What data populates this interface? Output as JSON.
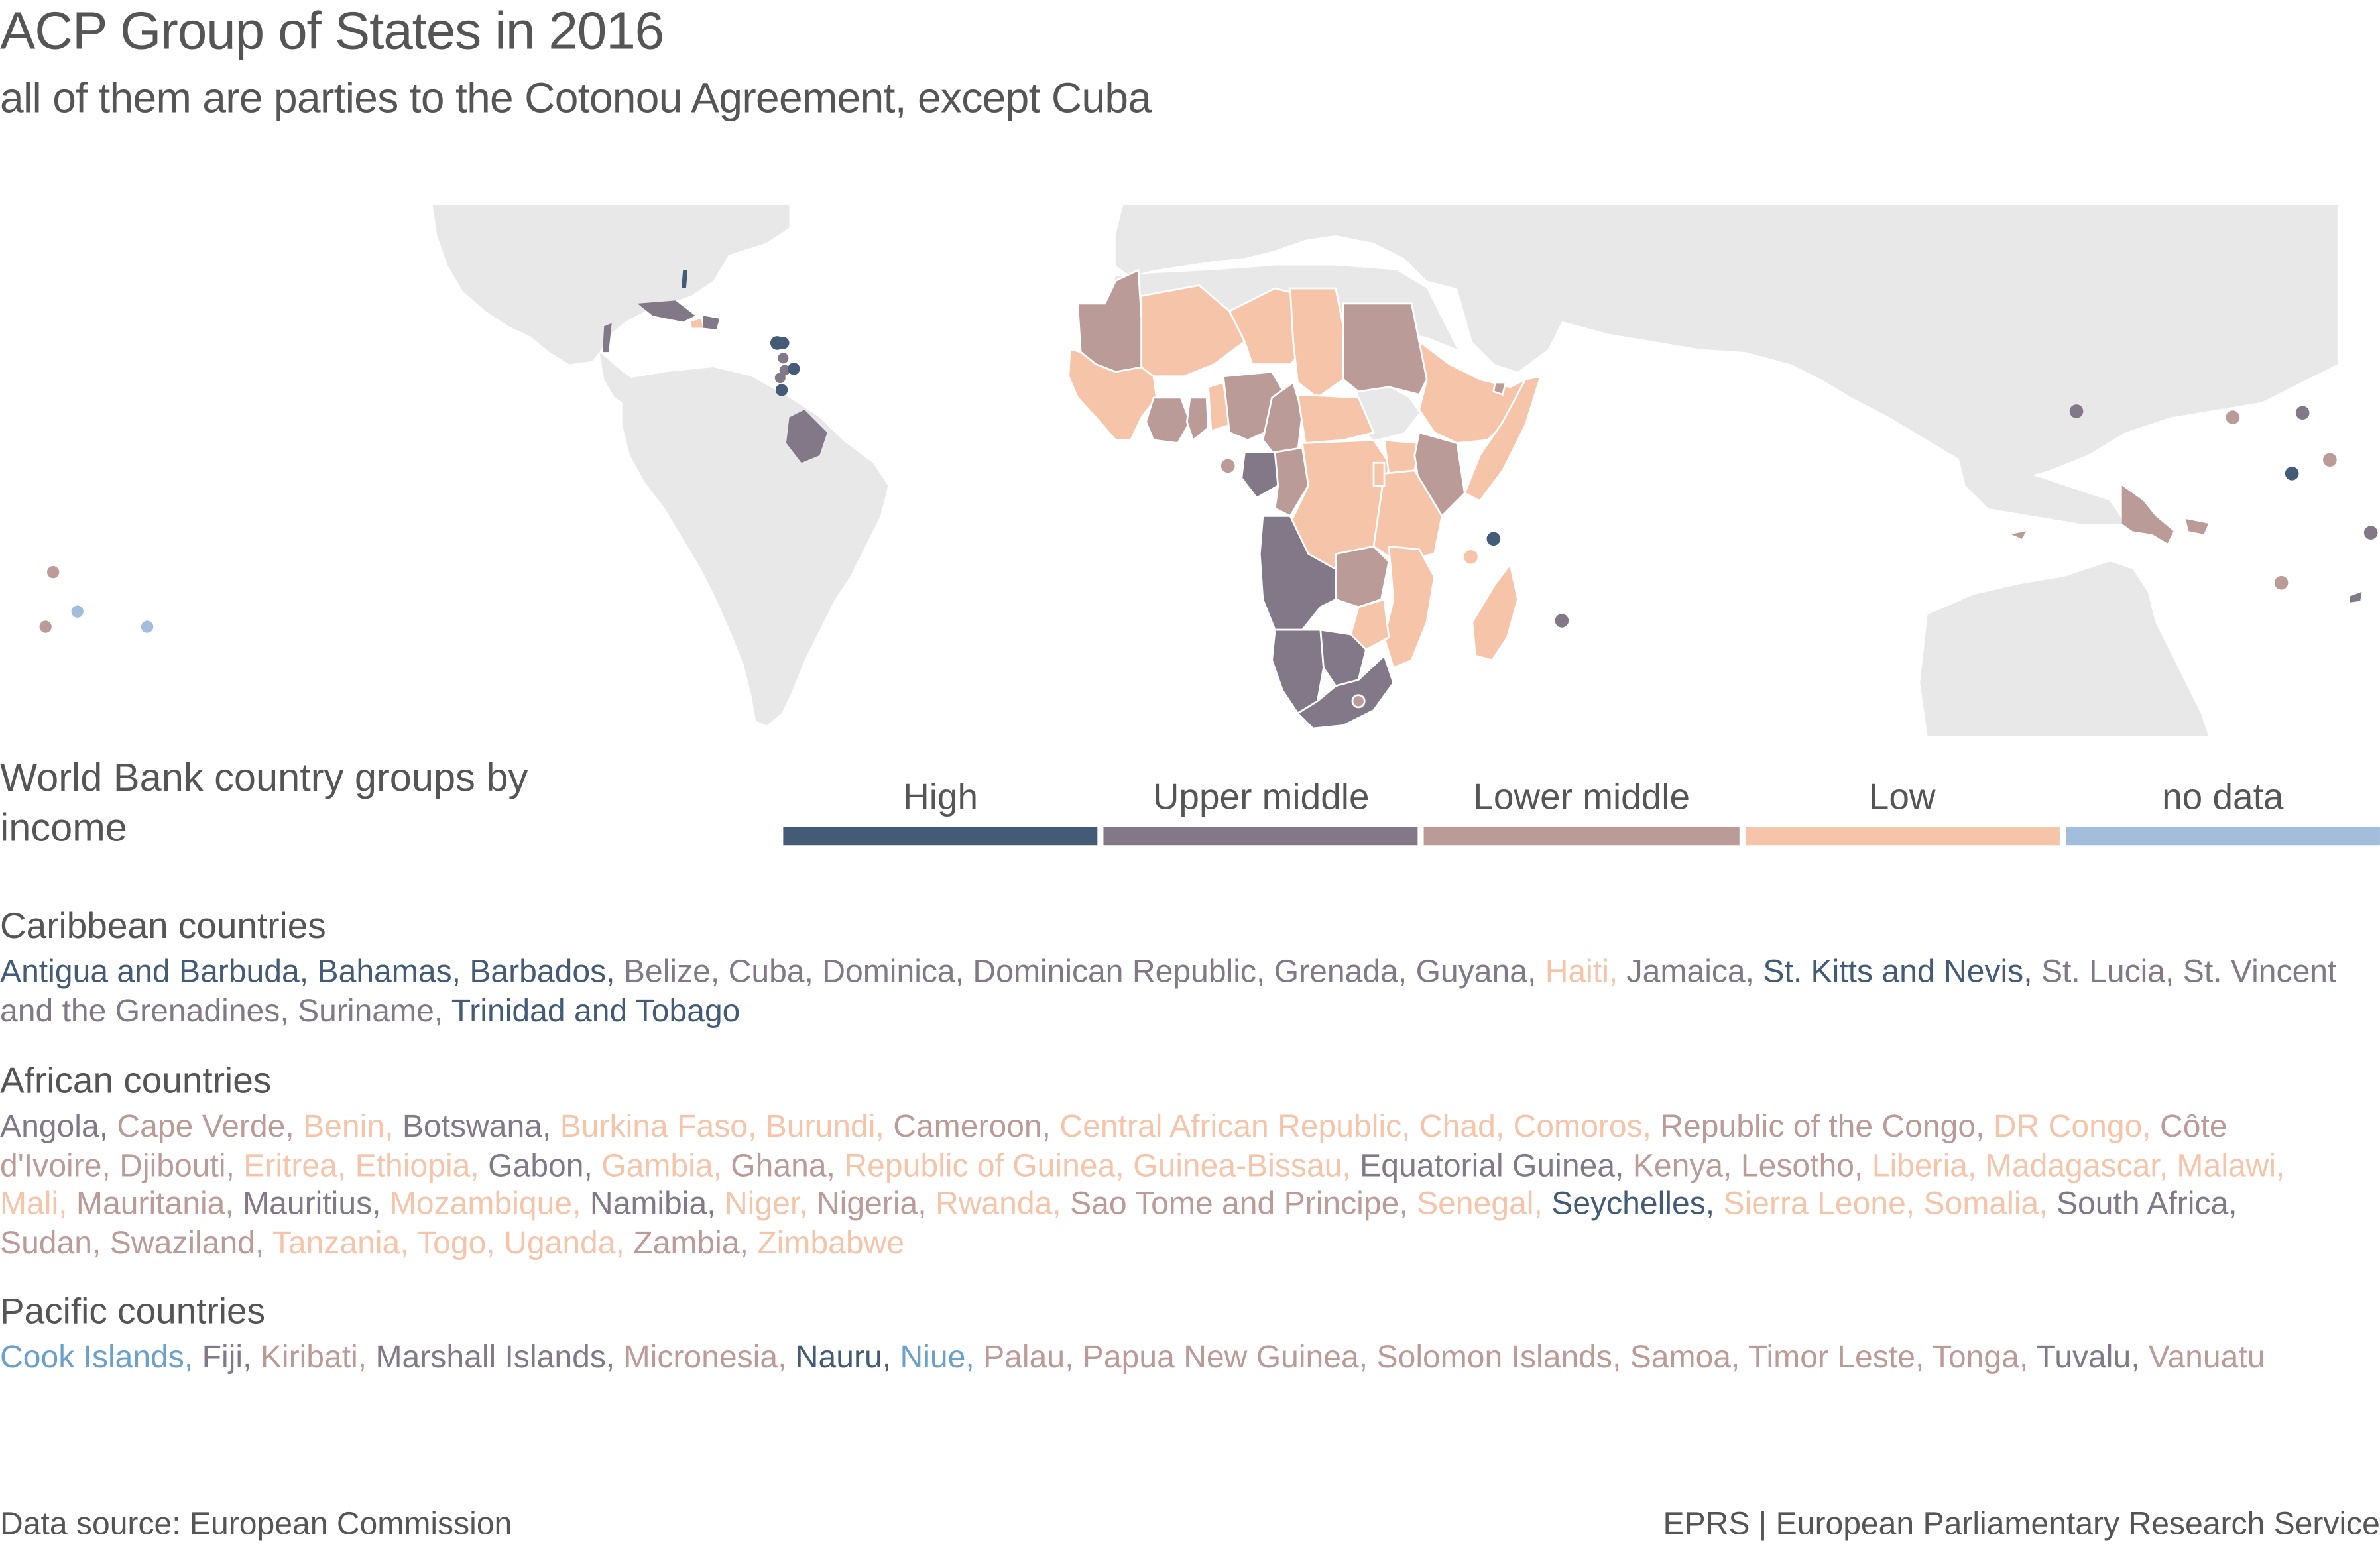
{
  "header": {
    "title": "ACP Group of States in 2016",
    "subtitle": "all of them are parties to the Cotonou Agreement, except Cuba"
  },
  "legend": {
    "title": "World Bank country groups by income",
    "items": [
      {
        "key": "high",
        "label": "High",
        "color": "#435b77"
      },
      {
        "key": "upper",
        "label": "Upper middle",
        "color": "#827888"
      },
      {
        "key": "lower",
        "label": "Lower middle",
        "color": "#bb9b97"
      },
      {
        "key": "low",
        "label": "Low",
        "color": "#f6c4a8"
      },
      {
        "key": "nodata",
        "label": "no data",
        "color": "#a3bedc"
      }
    ]
  },
  "map": {
    "land_color": "#e8e8e8",
    "border_color": "#ffffff"
  },
  "sections": [
    {
      "title": "Caribbean countries",
      "countries": [
        {
          "name": "Antigua and Barbuda",
          "group": "high"
        },
        {
          "name": "Bahamas",
          "group": "high"
        },
        {
          "name": "Barbados",
          "group": "high"
        },
        {
          "name": "Belize",
          "group": "upper"
        },
        {
          "name": "Cuba",
          "group": "upper"
        },
        {
          "name": "Dominica",
          "group": "upper"
        },
        {
          "name": "Dominican Republic",
          "group": "upper"
        },
        {
          "name": "Grenada",
          "group": "upper"
        },
        {
          "name": "Guyana",
          "group": "upper"
        },
        {
          "name": "Haiti",
          "group": "low"
        },
        {
          "name": "Jamaica",
          "group": "upper"
        },
        {
          "name": "St. Kitts and Nevis",
          "group": "high"
        },
        {
          "name": "St. Lucia",
          "group": "upper"
        },
        {
          "name": "St. Vincent and the Grenadines",
          "group": "upper"
        },
        {
          "name": "Suriname",
          "group": "upper"
        },
        {
          "name": "Trinidad and Tobago",
          "group": "high"
        }
      ]
    },
    {
      "title": "African countries",
      "countries": [
        {
          "name": "Angola",
          "group": "upper"
        },
        {
          "name": "Cape Verde",
          "group": "lower"
        },
        {
          "name": "Benin",
          "group": "low"
        },
        {
          "name": "Botswana",
          "group": "upper"
        },
        {
          "name": "Burkina Faso",
          "group": "low"
        },
        {
          "name": "Burundi",
          "group": "low"
        },
        {
          "name": "Cameroon",
          "group": "lower"
        },
        {
          "name": "Central African Republic",
          "group": "low"
        },
        {
          "name": "Chad",
          "group": "low"
        },
        {
          "name": "Comoros",
          "group": "low"
        },
        {
          "name": "Republic of the Congo",
          "group": "lower"
        },
        {
          "name": "DR Congo",
          "group": "low"
        },
        {
          "name": "Côte d'Ivoire",
          "group": "lower"
        },
        {
          "name": "Djibouti",
          "group": "lower"
        },
        {
          "name": "Eritrea",
          "group": "low"
        },
        {
          "name": "Ethiopia",
          "group": "low"
        },
        {
          "name": "Gabon",
          "group": "upper"
        },
        {
          "name": "Gambia",
          "group": "low"
        },
        {
          "name": "Ghana",
          "group": "lower"
        },
        {
          "name": "Republic of Guinea",
          "group": "low"
        },
        {
          "name": "Guinea-Bissau",
          "group": "low"
        },
        {
          "name": "Equatorial Guinea",
          "group": "upper"
        },
        {
          "name": "Kenya",
          "group": "lower"
        },
        {
          "name": "Lesotho",
          "group": "lower"
        },
        {
          "name": "Liberia",
          "group": "low"
        },
        {
          "name": "Madagascar",
          "group": "low"
        },
        {
          "name": "Malawi",
          "group": "low"
        },
        {
          "name": "Mali",
          "group": "low"
        },
        {
          "name": "Mauritania",
          "group": "lower"
        },
        {
          "name": "Mauritius",
          "group": "upper"
        },
        {
          "name": "Mozambique",
          "group": "low"
        },
        {
          "name": "Namibia",
          "group": "upper"
        },
        {
          "name": "Niger",
          "group": "low"
        },
        {
          "name": "Nigeria",
          "group": "lower"
        },
        {
          "name": "Rwanda",
          "group": "low"
        },
        {
          "name": "Sao Tome and Principe",
          "group": "lower"
        },
        {
          "name": "Senegal",
          "group": "low"
        },
        {
          "name": "Seychelles",
          "group": "high"
        },
        {
          "name": "Sierra Leone",
          "group": "low"
        },
        {
          "name": "Somalia",
          "group": "low"
        },
        {
          "name": "South Africa",
          "group": "upper"
        },
        {
          "name": "Sudan",
          "group": "lower"
        },
        {
          "name": "Swaziland",
          "group": "lower"
        },
        {
          "name": "Tanzania",
          "group": "low"
        },
        {
          "name": "Togo",
          "group": "low"
        },
        {
          "name": "Uganda",
          "group": "low"
        },
        {
          "name": "Zambia",
          "group": "lower"
        },
        {
          "name": "Zimbabwe",
          "group": "low"
        }
      ]
    },
    {
      "title": "Pacific countries",
      "countries": [
        {
          "name": "Cook Islands",
          "group": "nodata"
        },
        {
          "name": "Fiji",
          "group": "upper"
        },
        {
          "name": "Kiribati",
          "group": "lower"
        },
        {
          "name": "Marshall Islands",
          "group": "upper"
        },
        {
          "name": "Micronesia",
          "group": "lower"
        },
        {
          "name": "Nauru",
          "group": "high"
        },
        {
          "name": "Niue",
          "group": "nodata"
        },
        {
          "name": "Palau",
          "group": "lower"
        },
        {
          "name": "Papua New Guinea",
          "group": "lower"
        },
        {
          "name": "Solomon Islands",
          "group": "lower"
        },
        {
          "name": "Samoa",
          "group": "lower"
        },
        {
          "name": "Timor Leste",
          "group": "lower"
        },
        {
          "name": "Tonga",
          "group": "lower"
        },
        {
          "name": "Tuvalu",
          "group": "upper"
        },
        {
          "name": "Vanuatu",
          "group": "lower"
        }
      ]
    }
  ],
  "footer": {
    "source": "Data source: European Commission",
    "credit": "EPRS | European Parliamentary Research Service"
  }
}
